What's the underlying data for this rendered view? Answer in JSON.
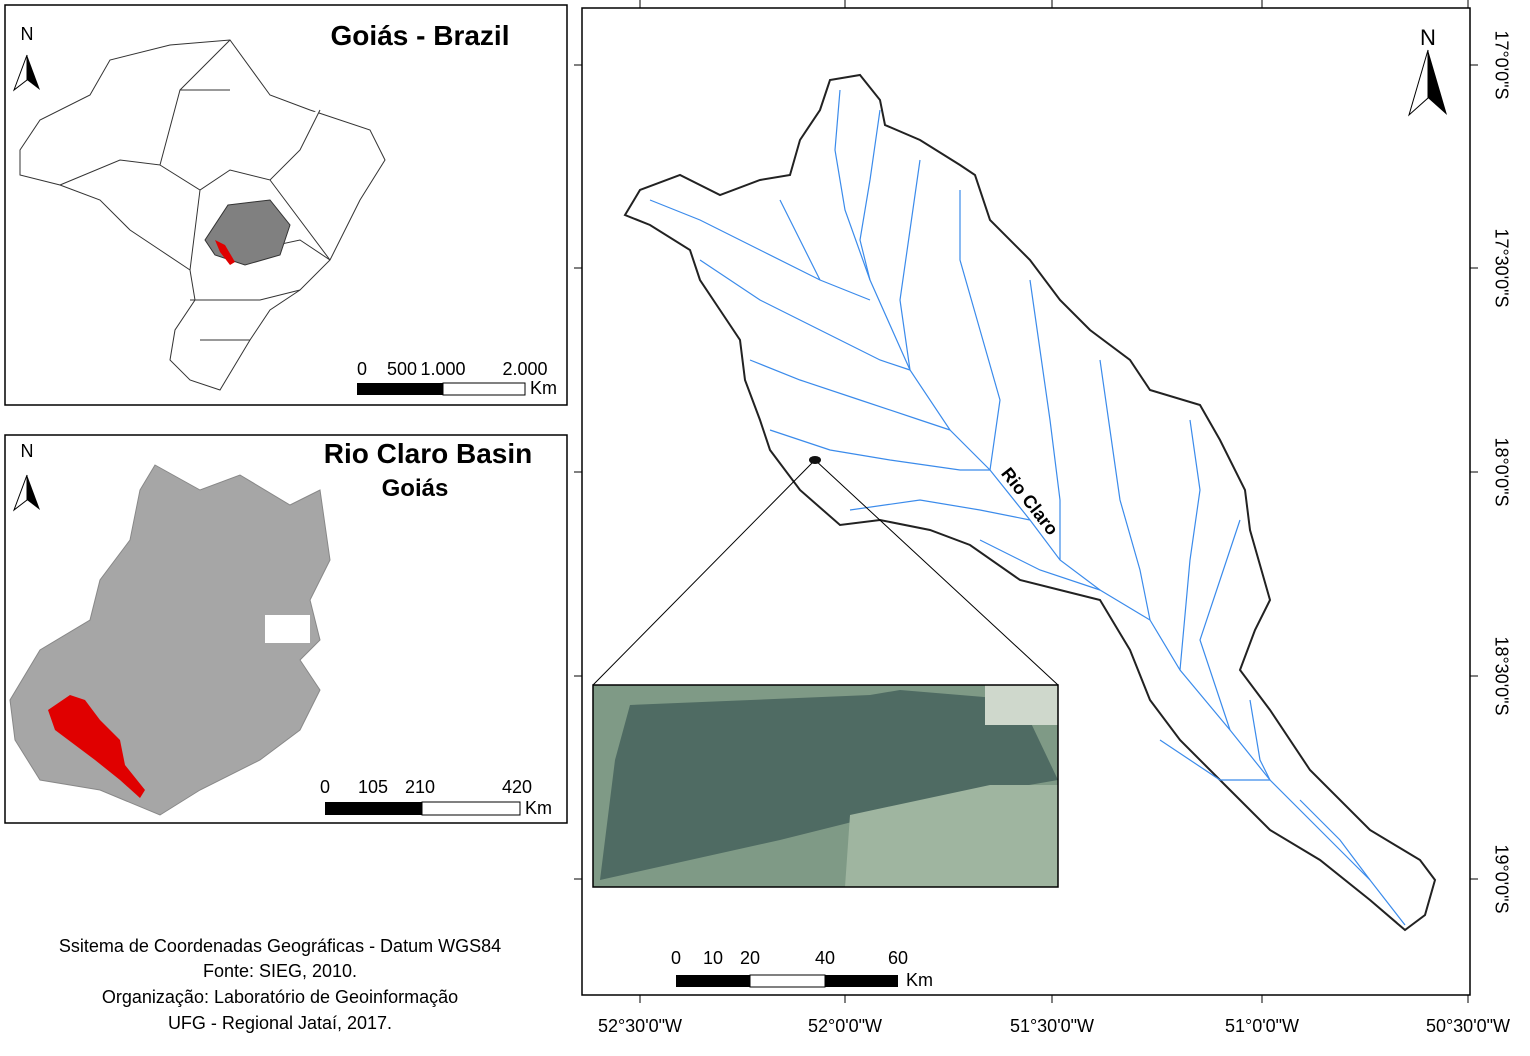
{
  "brazil_panel": {
    "north": "N",
    "title": "Goiás - Brazil",
    "scale": {
      "labels": [
        "0",
        "500",
        "1.000",
        "2.000"
      ],
      "unit": "Km"
    }
  },
  "goias_panel": {
    "north": "N",
    "title": "Rio Claro Basin",
    "subtitle": "Goiás",
    "scale": {
      "labels": [
        "0",
        "105",
        "210",
        "420"
      ],
      "unit": "Km"
    }
  },
  "main_map": {
    "north": "N",
    "river_label": "Rio Claro",
    "longitude_labels": [
      "52°30'0\"W",
      "52°0'0\"W",
      "51°30'0\"W",
      "51°0'0\"W",
      "50°30'0\"W"
    ],
    "latitude_labels": [
      "17°0'0\"S",
      "17°30'0\"S",
      "18°0'0\"S",
      "18°30'0\"S",
      "19°0'0\"S"
    ],
    "scale": {
      "labels": [
        "0",
        "10",
        "20",
        "40",
        "60"
      ],
      "unit": "Km"
    }
  },
  "footer": {
    "lines": [
      "Ssitema de Coordenadas Geográficas - Datum WGS84",
      "Fonte: SIEG, 2010.",
      "Organização: Laboratório de Geoinformação",
      "UFG - Regional Jataí, 2017."
    ]
  }
}
